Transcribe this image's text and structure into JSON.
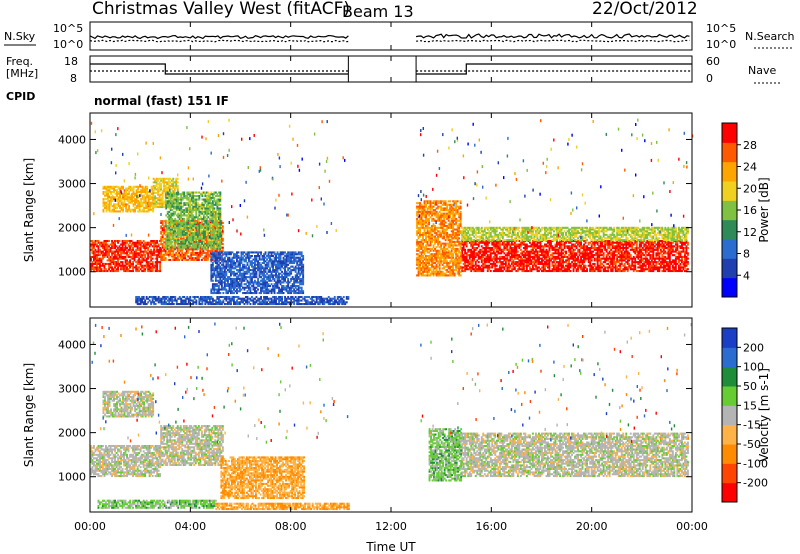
{
  "header": {
    "station": "Christmas Valley West (fitACF)",
    "beam": "Beam 13",
    "date": "22/Oct/2012"
  },
  "noise_panel": {
    "left_label": "N.Sky",
    "right_label": "N.Search",
    "left_ticks": [
      "10^5",
      "10^0"
    ],
    "right_ticks": [
      "10^5",
      "10^0"
    ]
  },
  "freq_panel": {
    "left_label_line1": "Freq.",
    "left_label_line2": "[MHz]",
    "right_label": "Nave",
    "left_ticks": [
      "18",
      "8"
    ],
    "right_ticks": [
      "60",
      "0"
    ]
  },
  "cpid": {
    "label": "CPID",
    "value": "normal (fast) 151 IF"
  },
  "axes": {
    "ylabel": "Slant Range [km]",
    "xlabel": "Time UT",
    "yticks": [
      "1000",
      "2000",
      "3000",
      "4000"
    ],
    "xticks": [
      "00:00",
      "04:00",
      "08:00",
      "12:00",
      "16:00",
      "20:00",
      "00:00"
    ]
  },
  "power_colorbar": {
    "label": "Power [dB]",
    "ticks": [
      "4",
      "8",
      "12",
      "16",
      "20",
      "24",
      "28"
    ],
    "colors": [
      "#0000ff",
      "#1f3fb0",
      "#2a6cd0",
      "#2e8b57",
      "#7fc241",
      "#f0d020",
      "#ffa500",
      "#ff5a00",
      "#ff0000"
    ]
  },
  "velocity_colorbar": {
    "label": "Velocity [m s-1]",
    "ticks": [
      "200",
      "100",
      "50",
      "15",
      "-15",
      "-50",
      "-100",
      "-200"
    ],
    "colors": [
      "#1b3ec6",
      "#2a6cd0",
      "#1f8c3a",
      "#66cc33",
      "#b4b4b4",
      "#ffb347",
      "#ff8c00",
      "#ff4500",
      "#ff0000"
    ]
  },
  "chart_data": [
    {
      "type": "heatmap",
      "panel": "power",
      "x_unit": "hours UT",
      "xlim": [
        0,
        24
      ],
      "ylim": [
        200,
        4600
      ],
      "cmap_range": [
        2,
        31
      ],
      "features": [
        {
          "name": "main band A",
          "t0": 0.0,
          "t1": 2.8,
          "r0": 1000,
          "r1": 1700,
          "level": 28
        },
        {
          "name": "main band B",
          "t0": 2.8,
          "t1": 5.3,
          "r0": 1250,
          "r1": 2150,
          "level": 26
        },
        {
          "name": "streak 1",
          "t0": 0.5,
          "t1": 2.5,
          "r0": 2350,
          "r1": 2950,
          "level": 22
        },
        {
          "name": "streak 2",
          "t0": 2.5,
          "t1": 3.5,
          "r0": 2450,
          "r1": 3100,
          "level": 20
        },
        {
          "name": "streak 3",
          "t0": 3.0,
          "t1": 5.2,
          "r0": 1500,
          "r1": 2800,
          "level": 16
        },
        {
          "name": "blue patch",
          "t0": 4.8,
          "t1": 8.5,
          "r0": 500,
          "r1": 1450,
          "level": 9
        },
        {
          "name": "low-range echoes",
          "t0": 1.8,
          "t1": 10.3,
          "r0": 250,
          "r1": 420,
          "level": 8
        },
        {
          "name": "afternoon band",
          "t0": 14.8,
          "t1": 23.8,
          "r0": 1000,
          "r1": 1700,
          "level": 29
        },
        {
          "name": "afternoon upper",
          "t0": 14.8,
          "t1": 23.8,
          "r0": 1700,
          "r1": 2000,
          "level": 18
        },
        {
          "name": "onset",
          "t0": 13.0,
          "t1": 14.8,
          "r0": 900,
          "r1": 2600,
          "level": 24
        }
      ]
    },
    {
      "type": "heatmap",
      "panel": "velocity",
      "x_unit": "hours UT",
      "xlim": [
        0,
        24
      ],
      "ylim": [
        200,
        4600
      ],
      "cmap_range": [
        -200,
        200
      ],
      "features": [
        {
          "name": "ground scatter A",
          "t0": 0.0,
          "t1": 2.8,
          "r0": 1000,
          "r1": 1700,
          "velocity": 0
        },
        {
          "name": "ground scatter B",
          "t0": 2.8,
          "t1": 5.3,
          "r0": 1250,
          "r1": 2150,
          "velocity": 0
        },
        {
          "name": "streak 1",
          "t0": 0.5,
          "t1": 2.5,
          "r0": 2350,
          "r1": 2950,
          "velocity": 0
        },
        {
          "name": "orange patch",
          "t0": 5.2,
          "t1": 8.5,
          "r0": 500,
          "r1": 1450,
          "velocity": -60
        },
        {
          "name": "green low range",
          "t0": 0.3,
          "t1": 5.0,
          "r0": 280,
          "r1": 450,
          "velocity": 40
        },
        {
          "name": "orange low range",
          "t0": 5.0,
          "t1": 10.3,
          "r0": 250,
          "r1": 400,
          "velocity": -60
        },
        {
          "name": "afternoon ground scatter",
          "t0": 14.8,
          "t1": 23.8,
          "r0": 1000,
          "r1": 2000,
          "velocity": 0
        },
        {
          "name": "green onset",
          "t0": 13.5,
          "t1": 14.8,
          "r0": 900,
          "r1": 2100,
          "velocity": 40
        }
      ]
    }
  ]
}
